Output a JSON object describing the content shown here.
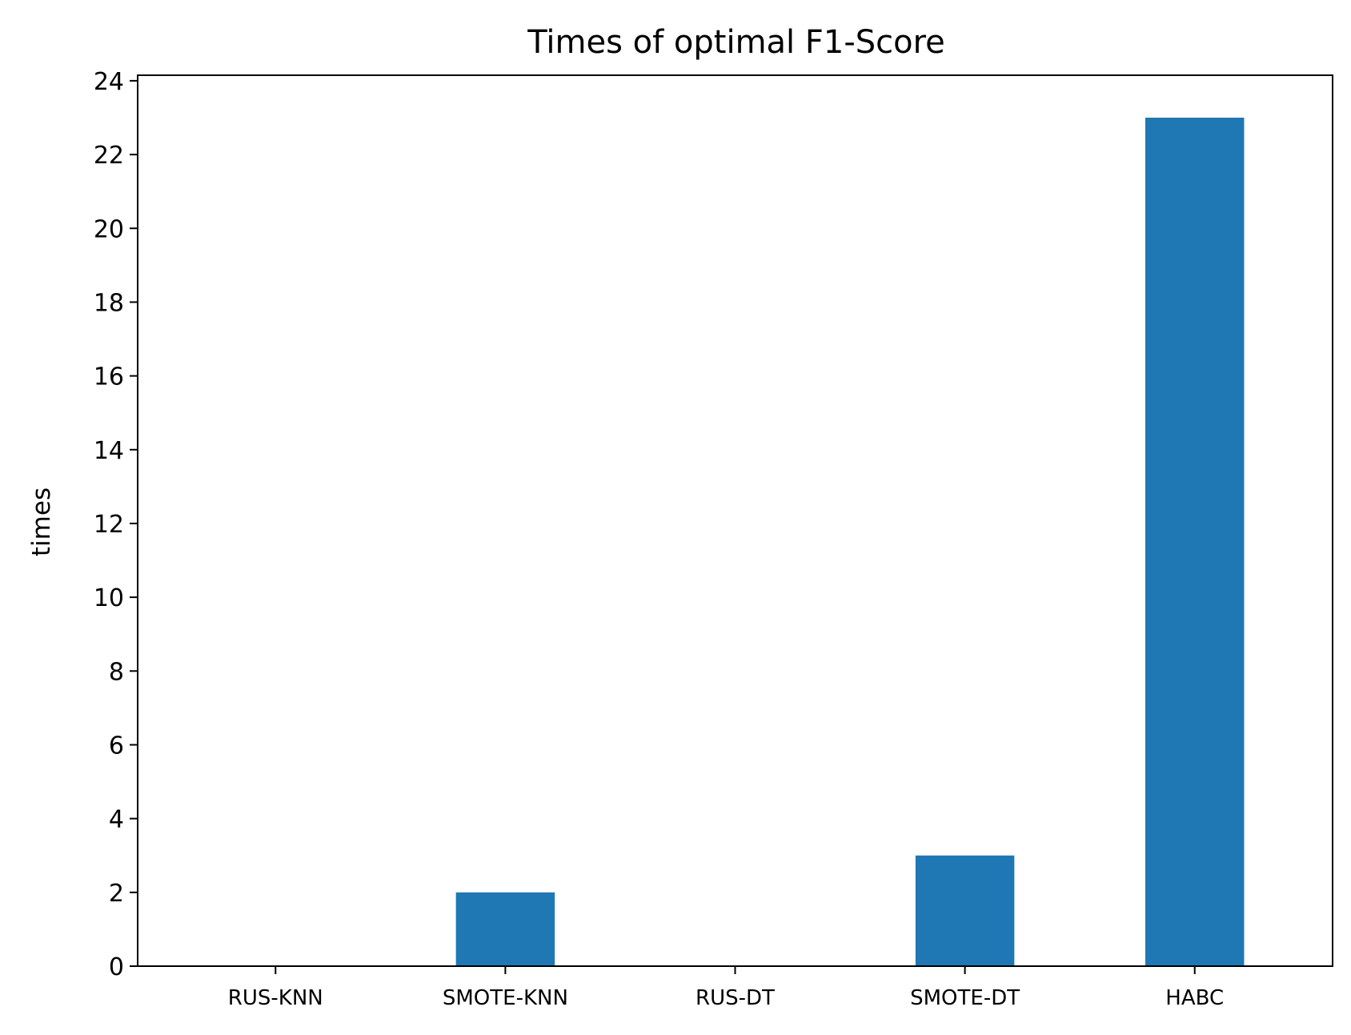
{
  "chart_data": {
    "type": "bar",
    "title": "Times of optimal F1-Score",
    "xlabel": "",
    "ylabel": "times",
    "categories": [
      "RUS-KNN",
      "SMOTE-KNN",
      "RUS-DT",
      "SMOTE-DT",
      "HABC"
    ],
    "values": [
      0,
      2,
      0,
      3,
      23
    ],
    "ylim": [
      0,
      24.15
    ],
    "yticks": [
      0,
      2,
      4,
      6,
      8,
      10,
      12,
      14,
      16,
      18,
      20,
      22,
      24
    ],
    "grid": false,
    "legend": "none",
    "bar_color": "#1f77b4"
  }
}
